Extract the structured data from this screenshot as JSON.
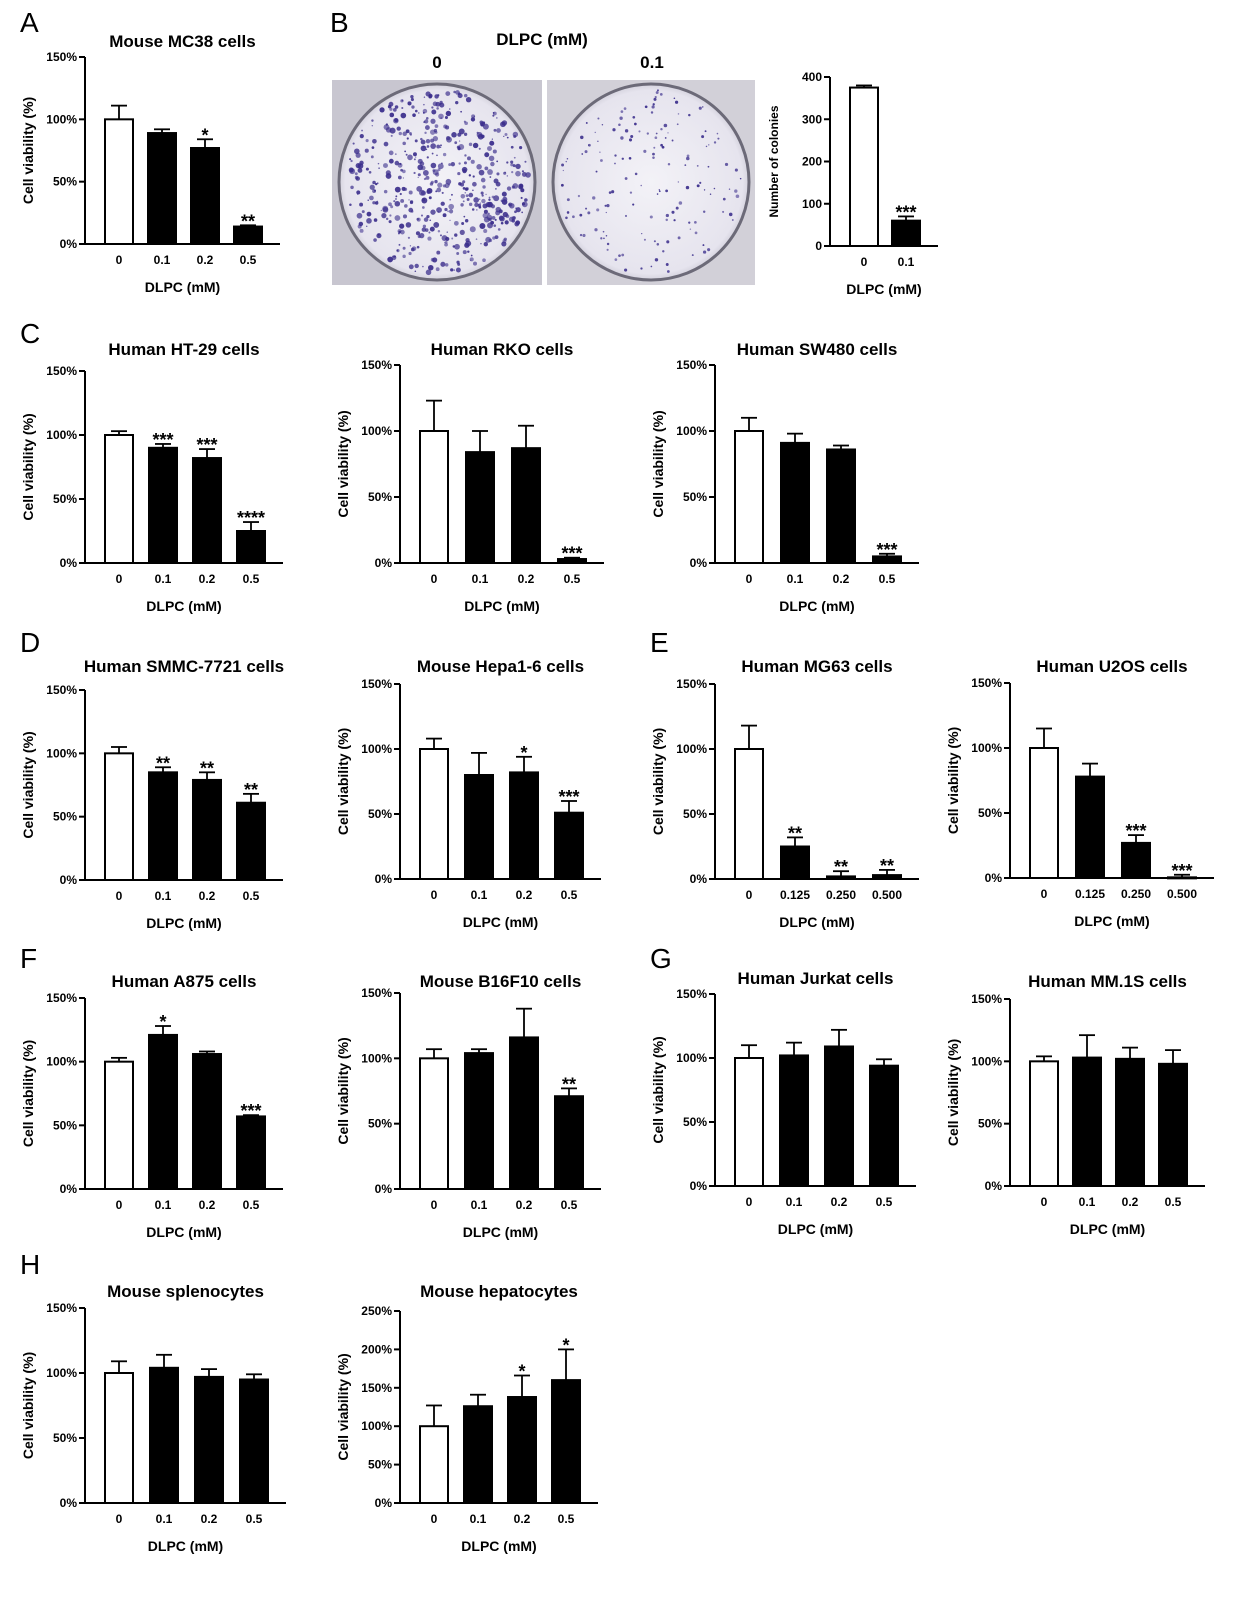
{
  "chart_data": [
    {
      "panel": "A",
      "type": "bar",
      "title": "Mouse MC38 cells",
      "xlabel": "DLPC (mM)",
      "ylabel": "Cell viability (%)",
      "categories": [
        "0",
        "0.1",
        "0.2",
        "0.5"
      ],
      "values": [
        100,
        89,
        77,
        14
      ],
      "errors": [
        11,
        3,
        7,
        1
      ],
      "sig": [
        "",
        "",
        "*",
        "**"
      ],
      "ylim": [
        0,
        150
      ],
      "yticks": [
        "0%",
        "50%",
        "100%",
        "150%"
      ]
    },
    {
      "panel": "B",
      "type": "bar",
      "title": "",
      "xlabel": "DLPC (mM)",
      "ylabel": "Number of colonies",
      "categories": [
        "0",
        "0.1"
      ],
      "values": [
        375,
        60
      ],
      "errors": [
        5,
        10
      ],
      "sig": [
        "",
        "***"
      ],
      "ylim": [
        0,
        400
      ],
      "yticks": [
        "0",
        "100",
        "200",
        "300",
        "400"
      ]
    },
    {
      "panel": "C",
      "type": "bar",
      "title": "Human HT-29 cells",
      "xlabel": "DLPC (mM)",
      "ylabel": "Cell viability (%)",
      "categories": [
        "0",
        "0.1",
        "0.2",
        "0.5"
      ],
      "values": [
        100,
        90,
        82,
        25
      ],
      "errors": [
        3,
        3,
        7,
        7
      ],
      "sig": [
        "",
        "***",
        "***",
        "****"
      ],
      "ylim": [
        0,
        150
      ],
      "yticks": [
        "0%",
        "50%",
        "100%",
        "150%"
      ]
    },
    {
      "panel": "",
      "type": "bar",
      "title": "Human RKO cells",
      "xlabel": "DLPC (mM)",
      "ylabel": "Cell viability (%)",
      "categories": [
        "0",
        "0.1",
        "0.2",
        "0.5"
      ],
      "values": [
        100,
        84,
        87,
        3
      ],
      "errors": [
        23,
        16,
        17,
        1
      ],
      "sig": [
        "",
        "",
        "",
        "***"
      ],
      "ylim": [
        0,
        150
      ],
      "yticks": [
        "0%",
        "50%",
        "100%",
        "150%"
      ]
    },
    {
      "panel": "",
      "type": "bar",
      "title": "Human SW480 cells",
      "xlabel": "DLPC (mM)",
      "ylabel": "Cell viability (%)",
      "categories": [
        "0",
        "0.1",
        "0.2",
        "0.5"
      ],
      "values": [
        100,
        91,
        86,
        5
      ],
      "errors": [
        10,
        7,
        3,
        2
      ],
      "sig": [
        "",
        "",
        "",
        "***"
      ],
      "ylim": [
        0,
        150
      ],
      "yticks": [
        "0%",
        "50%",
        "100%",
        "150%"
      ]
    },
    {
      "panel": "D",
      "type": "bar",
      "title": "Human SMMC-7721 cells",
      "xlabel": "DLPC (mM)",
      "ylabel": "Cell viability (%)",
      "categories": [
        "0",
        "0.1",
        "0.2",
        "0.5"
      ],
      "values": [
        100,
        85,
        79,
        61
      ],
      "errors": [
        5,
        4,
        6,
        7
      ],
      "sig": [
        "",
        "**",
        "**",
        "**"
      ],
      "ylim": [
        0,
        150
      ],
      "yticks": [
        "0%",
        "50%",
        "100%",
        "150%"
      ]
    },
    {
      "panel": "",
      "type": "bar",
      "title": "Mouse Hepa1-6 cells",
      "xlabel": "DLPC (mM)",
      "ylabel": "Cell viability (%)",
      "categories": [
        "0",
        "0.1",
        "0.2",
        "0.5"
      ],
      "values": [
        100,
        80,
        82,
        51
      ],
      "errors": [
        8,
        17,
        12,
        9
      ],
      "sig": [
        "",
        "",
        "*",
        "***"
      ],
      "ylim": [
        0,
        150
      ],
      "yticks": [
        "0%",
        "50%",
        "100%",
        "150%"
      ]
    },
    {
      "panel": "E",
      "type": "bar",
      "title": "Human MG63 cells",
      "xlabel": "DLPC (mM)",
      "ylabel": "Cell viability (%)",
      "categories": [
        "0",
        "0.125",
        "0.250",
        "0.500"
      ],
      "values": [
        100,
        25,
        2,
        3
      ],
      "errors": [
        18,
        7,
        4,
        4
      ],
      "sig": [
        "",
        "**",
        "**",
        "**"
      ],
      "ylim": [
        0,
        150
      ],
      "yticks": [
        "0%",
        "50%",
        "100%",
        "150%"
      ]
    },
    {
      "panel": "",
      "type": "bar",
      "title": "Human U2OS cells",
      "xlabel": "DLPC (mM)",
      "ylabel": "Cell viability (%)",
      "categories": [
        "0",
        "0.125",
        "0.250",
        "0.500"
      ],
      "values": [
        100,
        78,
        27,
        0.5
      ],
      "errors": [
        15,
        10,
        6,
        2
      ],
      "sig": [
        "",
        "",
        "***",
        "***"
      ],
      "ylim": [
        0,
        150
      ],
      "yticks": [
        "0%",
        "50%",
        "100%",
        "150%"
      ]
    },
    {
      "panel": "F",
      "type": "bar",
      "title": "Human A875 cells",
      "xlabel": "DLPC (mM)",
      "ylabel": "Cell viability (%)",
      "categories": [
        "0",
        "0.1",
        "0.2",
        "0.5"
      ],
      "values": [
        100,
        121,
        106,
        57
      ],
      "errors": [
        3,
        7,
        2,
        1
      ],
      "sig": [
        "",
        "*",
        "",
        "***"
      ],
      "ylim": [
        0,
        150
      ],
      "yticks": [
        "0%",
        "50%",
        "100%",
        "150%"
      ]
    },
    {
      "panel": "",
      "type": "bar",
      "title": "Mouse B16F10 cells",
      "xlabel": "DLPC (mM)",
      "ylabel": "Cell viability (%)",
      "categories": [
        "0",
        "0.1",
        "0.2",
        "0.5"
      ],
      "values": [
        100,
        104,
        116,
        71
      ],
      "errors": [
        7,
        3,
        22,
        6
      ],
      "sig": [
        "",
        "",
        "",
        "**"
      ],
      "ylim": [
        0,
        150
      ],
      "yticks": [
        "0%",
        "50%",
        "100%",
        "150%"
      ]
    },
    {
      "panel": "G",
      "type": "bar",
      "title": "Human Jurkat cells",
      "xlabel": "DLPC (mM)",
      "ylabel": "Cell viability (%)",
      "categories": [
        "0",
        "0.1",
        "0.2",
        "0.5"
      ],
      "values": [
        100,
        102,
        109,
        94
      ],
      "errors": [
        10,
        10,
        13,
        5
      ],
      "sig": [
        "",
        "",
        "",
        ""
      ],
      "ylim": [
        0,
        150
      ],
      "yticks": [
        "0%",
        "50%",
        "100%",
        "150%"
      ]
    },
    {
      "panel": "",
      "type": "bar",
      "title": "Human MM.1S cells",
      "xlabel": "DLPC (mM)",
      "ylabel": "Cell viability (%)",
      "categories": [
        "0",
        "0.1",
        "0.2",
        "0.5"
      ],
      "values": [
        100,
        103,
        102,
        98
      ],
      "errors": [
        4,
        18,
        9,
        11
      ],
      "sig": [
        "",
        "",
        "",
        ""
      ],
      "ylim": [
        0,
        150
      ],
      "yticks": [
        "0%",
        "50%",
        "100%",
        "150%"
      ]
    },
    {
      "panel": "H",
      "type": "bar",
      "title": "Mouse splenocytes",
      "xlabel": "DLPC (mM)",
      "ylabel": "Cell viability (%)",
      "categories": [
        "0",
        "0.1",
        "0.2",
        "0.5"
      ],
      "values": [
        100,
        104,
        97,
        95
      ],
      "errors": [
        9,
        10,
        6,
        4
      ],
      "sig": [
        "",
        "",
        "",
        ""
      ],
      "ylim": [
        0,
        150
      ],
      "yticks": [
        "0%",
        "50%",
        "100%",
        "150%"
      ]
    },
    {
      "panel": "",
      "type": "bar",
      "title": "Mouse hepatocytes",
      "xlabel": "DLPC (mM)",
      "ylabel": "Cell viability (%)",
      "categories": [
        "0",
        "0.1",
        "0.2",
        "0.5"
      ],
      "values": [
        100,
        126,
        138,
        160
      ],
      "errors": [
        27,
        15,
        28,
        40
      ],
      "sig": [
        "",
        "",
        "*",
        "*"
      ],
      "ylim": [
        0,
        250
      ],
      "yticks": [
        "0%",
        "50%",
        "100%",
        "150%",
        "200%",
        "250%"
      ]
    }
  ],
  "panel_b_images": {
    "header": "DLPC (mM)",
    "labels": [
      "0",
      "0.1"
    ],
    "dish_stain_color": "#3b2e8c"
  },
  "colors": {
    "control_bar": "#ffffff",
    "treated_bar": "#000000",
    "axis": "#000000"
  }
}
